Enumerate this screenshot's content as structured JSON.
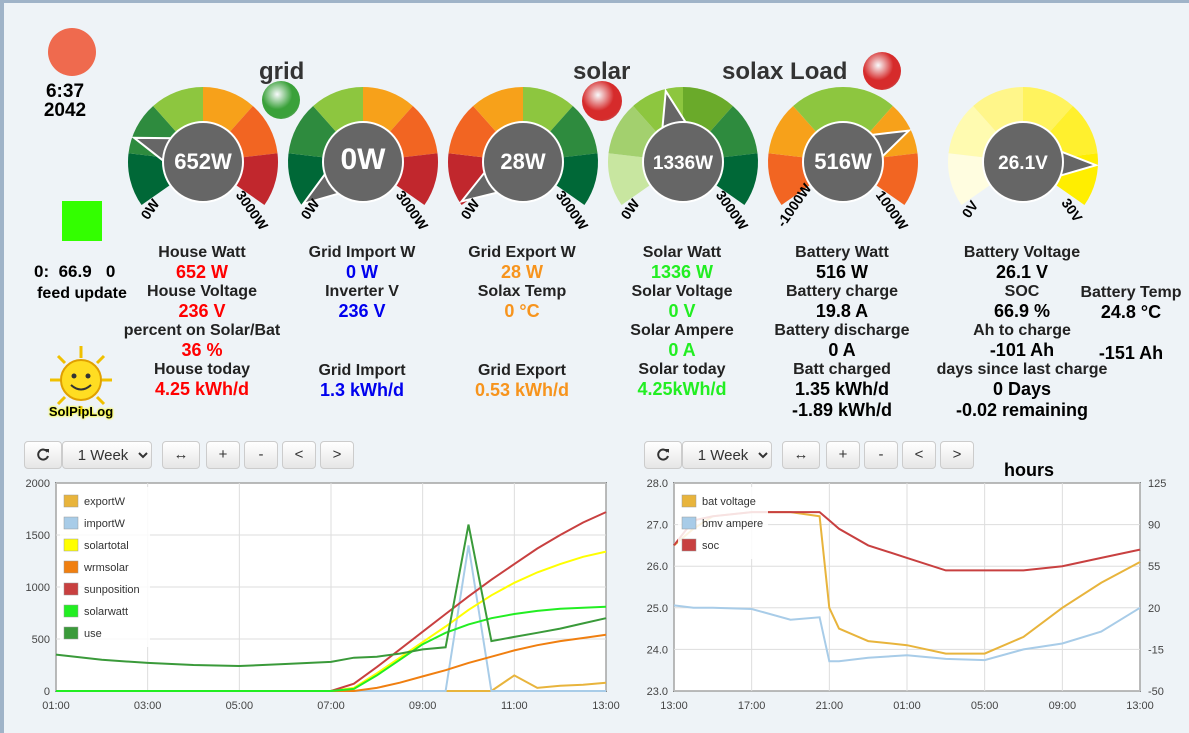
{
  "status": {
    "indicator_color": "#ef6a4e",
    "time": "6:37",
    "code": "2042",
    "feed_indicator_color": "#33ff00",
    "feed_values": [
      "0:",
      "66.9",
      "0"
    ],
    "feed_label": "feed update",
    "logo_text": "SolPipLog"
  },
  "titles": {
    "grid": "grid",
    "solar": "solar",
    "load": "solax Load"
  },
  "leds": {
    "grid": "#3aa13a",
    "solar": "#d62b2b",
    "load": "#d62b2b"
  },
  "gauges": [
    {
      "id": "house",
      "value": "652W",
      "min": "0W",
      "max": "3000W",
      "min_value": 0,
      "max_value": 3000,
      "reading": 652,
      "colors": [
        "#006837",
        "#2e8b3e",
        "#8dc63f",
        "#f7a11a",
        "#f26522",
        "#c1272d"
      ]
    },
    {
      "id": "grid",
      "value": "0W",
      "min": "0W",
      "max": "3000W",
      "min_value": 0,
      "max_value": 3000,
      "reading": 0,
      "colors": [
        "#006837",
        "#2e8b3e",
        "#8dc63f",
        "#f7a11a",
        "#f26522",
        "#c1272d"
      ]
    },
    {
      "id": "export",
      "value": "28W",
      "min": "0W",
      "max": "3000W",
      "min_value": 0,
      "max_value": 3000,
      "reading": 28,
      "colors": [
        "#c1272d",
        "#f26522",
        "#f7a11a",
        "#8dc63f",
        "#2e8b3e",
        "#006837"
      ]
    },
    {
      "id": "solar",
      "value": "1336W",
      "min": "0W",
      "max": "3000W",
      "min_value": 0,
      "max_value": 3000,
      "reading": 1336,
      "colors": [
        "#c8e6a0",
        "#a3d06e",
        "#8dc63f",
        "#6aaa2a",
        "#2e8b3e",
        "#006837"
      ]
    },
    {
      "id": "battery",
      "value": "516W",
      "min": "-1000W",
      "max": "1000W",
      "min_value": -1000,
      "max_value": 1000,
      "reading": 516,
      "colors": [
        "#f26522",
        "#f7a11a",
        "#8dc63f",
        "#8dc63f",
        "#f7a11a",
        "#f26522"
      ]
    },
    {
      "id": "voltage",
      "value": "26.1V",
      "min": "0V",
      "max": "30V",
      "min_value": 0,
      "max_value": 30,
      "reading": 26.1,
      "colors": [
        "#fffde0",
        "#fffbb0",
        "#fff68a",
        "#fff35e",
        "#fff02e",
        "#ffee00"
      ]
    }
  ],
  "stats": {
    "house": {
      "watt_label": "House Watt",
      "watt": "652 W",
      "voltage_label": "House Voltage",
      "voltage": "236 V",
      "percent_label": "percent on Solar/Bat",
      "percent": "36 %",
      "today_label": "House today",
      "today": "4.25 kWh/d"
    },
    "grid": {
      "import_label": "Grid Import W",
      "import": "0 W",
      "inverter_label": "Inverter V",
      "inverter": "236 V",
      "total_label": "Grid Import",
      "total": "1.3 kWh/d"
    },
    "export": {
      "export_label": "Grid Export W",
      "export": "28 W",
      "temp_label": "Solax Temp",
      "temp": "0 °C",
      "total_label": "Grid Export",
      "total": "0.53 kWh/d"
    },
    "solar": {
      "watt_label": "Solar Watt",
      "watt": "1336 W",
      "voltage_label": "Solar Voltage",
      "voltage": "0 V",
      "ampere_label": "Solar Ampere",
      "ampere": "0 A",
      "today_label": "Solar today",
      "today": "4.25kWh/d"
    },
    "battery": {
      "watt_label": "Battery Watt",
      "watt": "516 W",
      "charge_label": "Battery charge",
      "charge": "19.8 A",
      "discharge_label": "Battery discharge",
      "discharge": "0 A",
      "charged_label": "Batt charged",
      "charged": "1.35 kWh/d",
      "discharged": "-1.89 kWh/d"
    },
    "battery2": {
      "voltage_label": "Battery Voltage",
      "voltage": "26.1 V",
      "soc_label": "SOC",
      "soc": "66.9 %",
      "ah_label": "Ah to charge",
      "ah": "-101 Ah",
      "days_label": "days since last charge",
      "days": "0 Days",
      "remaining": "-0.02 remaining",
      "temp_label": "Battery Temp",
      "temp": "24.8 °C",
      "ah2": "-151 Ah"
    }
  },
  "toolbar": {
    "refresh_icon": "refresh-icon",
    "range_options": [
      "1 Week"
    ],
    "range_selected": "1 Week",
    "expand_label": "↔",
    "plus_label": "+",
    "minus_label": "-",
    "prev_label": "<",
    "next_label": ">"
  },
  "colors": {
    "red": "#ff0000",
    "blue": "#0000ee",
    "orange": "#f7941d",
    "green": "#22ee22",
    "black": "#000000"
  },
  "chart_data": [
    {
      "type": "line",
      "title": "",
      "ylim": [
        0,
        2000
      ],
      "yticks": [
        "2000",
        "1500",
        "1000",
        "500",
        "0"
      ],
      "xticks": [
        "01:00",
        "03:00",
        "05:00",
        "07:00",
        "09:00",
        "11:00",
        "13:00"
      ],
      "x": [
        1,
        2,
        3,
        4,
        5,
        6,
        7,
        7.5,
        8,
        8.5,
        9,
        9.5,
        10,
        10.5,
        11,
        11.5,
        12,
        12.5,
        13
      ],
      "series": [
        {
          "name": "exportW",
          "color": "#e8b43c",
          "values": [
            0,
            0,
            0,
            0,
            0,
            0,
            0,
            0,
            0,
            0,
            0,
            0,
            0,
            0,
            150,
            30,
            50,
            60,
            80
          ]
        },
        {
          "name": "importW",
          "color": "#a8cce8",
          "values": [
            0,
            0,
            0,
            0,
            0,
            0,
            0,
            0,
            0,
            0,
            0,
            0,
            1400,
            0,
            0,
            0,
            0,
            0,
            0
          ]
        },
        {
          "name": "solartotal",
          "color": "#ffff00",
          "values": [
            0,
            0,
            0,
            0,
            0,
            0,
            0,
            30,
            170,
            320,
            470,
            620,
            780,
            920,
            1040,
            1140,
            1220,
            1290,
            1340
          ]
        },
        {
          "name": "wrmsolar",
          "color": "#f07f10",
          "values": [
            0,
            0,
            0,
            0,
            0,
            0,
            0,
            0,
            30,
            80,
            140,
            200,
            270,
            330,
            390,
            440,
            480,
            510,
            540
          ]
        },
        {
          "name": "sunposition",
          "color": "#c84040",
          "values": [
            0,
            0,
            0,
            0,
            0,
            0,
            0,
            70,
            230,
            400,
            570,
            740,
            910,
            1070,
            1220,
            1370,
            1500,
            1620,
            1720
          ]
        },
        {
          "name": "solarwatt",
          "color": "#22ee22",
          "values": [
            0,
            0,
            0,
            0,
            0,
            0,
            0,
            20,
            150,
            300,
            450,
            560,
            640,
            700,
            740,
            770,
            790,
            800,
            810
          ]
        },
        {
          "name": "use",
          "color": "#3a9a3a",
          "values": [
            350,
            300,
            270,
            250,
            240,
            260,
            280,
            320,
            330,
            360,
            400,
            420,
            1600,
            480,
            520,
            560,
            600,
            650,
            700
          ]
        }
      ]
    },
    {
      "type": "line",
      "title": "hours",
      "ylim": [
        23.0,
        28.0
      ],
      "y2lim": [
        -50,
        125
      ],
      "yticks": [
        "28.0",
        "27.0",
        "26.0",
        "25.0",
        "24.0",
        "23.0"
      ],
      "y2ticks": [
        "125",
        "90",
        "55",
        "20",
        "-15",
        "-50"
      ],
      "xticks": [
        "13:00",
        "17:00",
        "21:00",
        "01:00",
        "05:00",
        "09:00",
        "13:00"
      ],
      "x": [
        13,
        14,
        15,
        17,
        19,
        20.5,
        21,
        21.5,
        23,
        25,
        27,
        29,
        31,
        33,
        35,
        37
      ],
      "series": [
        {
          "name": "bat voltage",
          "color": "#e8b43c",
          "values": [
            26.5,
            26.9,
            27.2,
            27.3,
            27.3,
            27.2,
            25.0,
            24.5,
            24.2,
            24.1,
            23.9,
            23.9,
            24.3,
            25.0,
            25.6,
            26.1
          ]
        },
        {
          "name": "bmv ampere",
          "color": "#a8cce8",
          "values": [
            22,
            20,
            20,
            19,
            10,
            12,
            -25,
            -25,
            -22,
            -20,
            -23,
            -24,
            -15,
            -10,
            0,
            20
          ]
        },
        {
          "name": "soc",
          "color": "#c84040",
          "values": [
            26.5,
            27.1,
            27.2,
            27.3,
            27.3,
            27.3,
            27.1,
            26.9,
            26.5,
            26.2,
            25.9,
            25.9,
            25.9,
            26.0,
            26.2,
            26.4
          ]
        }
      ]
    }
  ]
}
